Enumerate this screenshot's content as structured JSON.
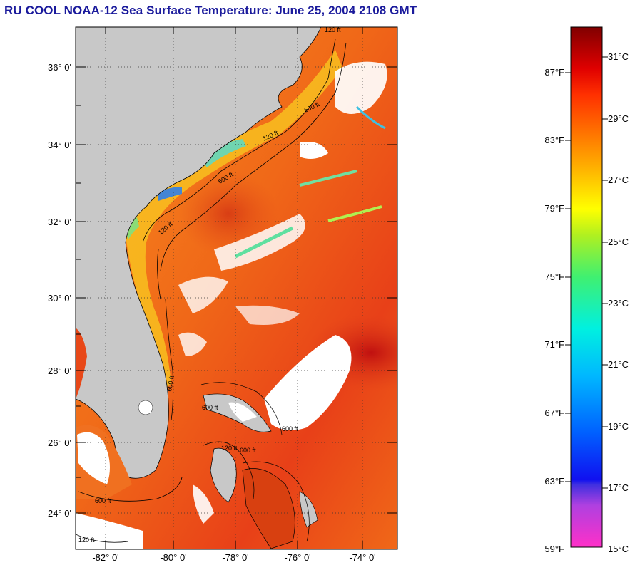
{
  "title": "RU COOL  NOAA-12  Sea Surface Temperature:  June 25, 2004 2108 GMT",
  "map": {
    "latitude_labels": [
      "36° 0'",
      "34° 0'",
      "32° 0'",
      "30° 0'",
      "28° 0'",
      "26° 0'",
      "24° 0'"
    ],
    "longitude_labels": [
      "-82° 0'",
      "-80° 0'",
      "-78° 0'",
      "-76° 0'",
      "-74° 0'"
    ],
    "contour_labels": [
      "120 ft",
      "600 ft",
      "120 ft",
      "600 ft",
      "120 ft",
      "600 ft",
      "120 ft",
      "600 ft",
      "600 ft",
      "120 ft",
      "600 ft",
      "600 ft"
    ],
    "colors": {
      "land": "#c8c8c8",
      "cloud": "#ffffff",
      "water": "#f06018"
    }
  },
  "colorbar": {
    "fahrenheit_labels": [
      "87°F",
      "83°F",
      "79°F",
      "75°F",
      "71°F",
      "67°F",
      "63°F",
      "59°F"
    ],
    "celsius_labels": [
      "31°C",
      "29°C",
      "27°C",
      "25°C",
      "23°C",
      "21°C",
      "19°C",
      "17°C",
      "15°C"
    ],
    "stops": [
      "#ff30c8",
      "#a040e0",
      "#2020e0",
      "#0050ff",
      "#00b8ff",
      "#00f0e8",
      "#40f080",
      "#c0f020",
      "#ffff00",
      "#ffb000",
      "#ff7000",
      "#ff2000",
      "#e00000",
      "#800000"
    ]
  }
}
